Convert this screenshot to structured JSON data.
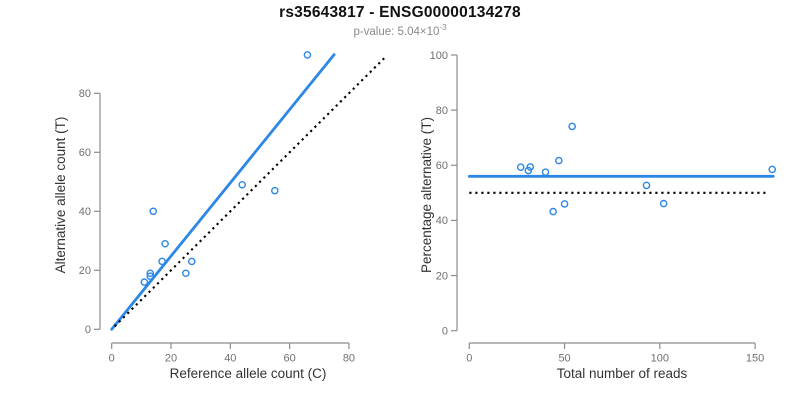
{
  "header": {
    "title": "rs35643817 - ENSG00000134278",
    "subtitle_prefix": "p-value: 5.04×10",
    "subtitle_exponent": "-3"
  },
  "colors": {
    "accent_blue": "#2d87e6",
    "black": "#000000",
    "axis": "#8d8d8d",
    "tick_label": "#707070",
    "axis_label": "#333333",
    "subtitle_gray": "#8a8a8a"
  },
  "chart_data": [
    {
      "type": "scatter",
      "panel": "left",
      "title": "",
      "xlabel": "Reference allele count (C)",
      "ylabel": "Alternative allele count (T)",
      "xticks": [
        0,
        20,
        40,
        60,
        80
      ],
      "yticks": [
        0,
        20,
        40,
        60,
        80
      ],
      "xlim": [
        0,
        92.5
      ],
      "ylim": [
        0,
        95
      ],
      "grid": false,
      "legend": false,
      "point_style": "open-circle",
      "points": [
        [
          11,
          16
        ],
        [
          13,
          18
        ],
        [
          13,
          19
        ],
        [
          14,
          40
        ],
        [
          17,
          23
        ],
        [
          18,
          29
        ],
        [
          25,
          19
        ],
        [
          27,
          23
        ],
        [
          44,
          49
        ],
        [
          55,
          47
        ],
        [
          66,
          93
        ]
      ],
      "lines": [
        {
          "name": "regression-line",
          "style": "solid",
          "color": "accent_blue",
          "slope": 1.241,
          "intercept": 0,
          "x1": 0,
          "y1": 0,
          "x2": 75,
          "y2": 93.1
        },
        {
          "name": "identity-line",
          "style": "dotted",
          "color": "black",
          "slope": 1,
          "intercept": 0,
          "x1": 1,
          "y1": 1,
          "x2": 92.5,
          "y2": 92.5
        }
      ]
    },
    {
      "type": "scatter",
      "panel": "right",
      "title": "",
      "xlabel": "Total number of reads",
      "ylabel": "Percentage alternative (T)",
      "xticks": [
        0,
        50,
        100,
        150
      ],
      "yticks": [
        0,
        20,
        40,
        60,
        80,
        100
      ],
      "xlim": [
        0,
        160
      ],
      "ylim": [
        0,
        100
      ],
      "grid": false,
      "legend": false,
      "point_style": "open-circle",
      "points": [
        [
          27,
          59.3
        ],
        [
          31,
          58.1
        ],
        [
          32,
          59.4
        ],
        [
          40,
          57.5
        ],
        [
          44,
          43.2
        ],
        [
          47,
          61.7
        ],
        [
          50,
          46.0
        ],
        [
          54,
          74.1
        ],
        [
          93,
          52.7
        ],
        [
          102,
          46.1
        ],
        [
          159,
          58.5
        ]
      ],
      "lines": [
        {
          "name": "mean-percentage-line",
          "style": "solid",
          "color": "accent_blue",
          "value": 56,
          "x1": 0,
          "y1": 56,
          "x2": 159.5,
          "y2": 56
        },
        {
          "name": "null-50-percent-line",
          "style": "dotted",
          "color": "black",
          "value": 50,
          "x1": 0,
          "y1": 50,
          "x2": 157,
          "y2": 50
        }
      ]
    }
  ]
}
